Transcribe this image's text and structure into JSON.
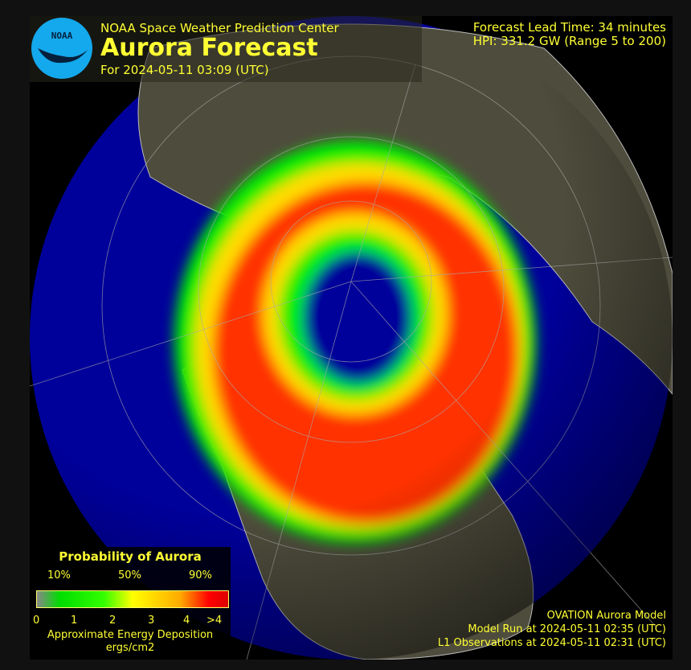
{
  "header": {
    "org": "NOAA Space Weather Prediction Center",
    "title": "Aurora Forecast",
    "for_date": "For 2024-05-11 03:09 (UTC)",
    "lead_time": "Forecast Lead Time:  34 minutes",
    "hpi": "HPI: 331.2 GW (Range 5 to 200)",
    "logo_text": "NOAA"
  },
  "legend": {
    "title": "Probability of Aurora",
    "percents": [
      "10%",
      "50%",
      "90%"
    ],
    "ticks": [
      "0",
      "1",
      "2",
      "3",
      "4",
      ">4"
    ],
    "energy_label": "Approximate Energy Deposition",
    "energy_unit": "ergs/cm2",
    "colors": [
      "#888888",
      "#00dd00",
      "#ffff00",
      "#ffaa00",
      "#ff0000"
    ]
  },
  "footer": {
    "model": "OVATION Aurora Model",
    "model_run": "Model Run at 2024-05-11 02:35 (UTC)",
    "l1": "L1 Observations at 2024-05-11 02:31 (UTC)"
  },
  "colors": {
    "text": "#ffff33",
    "ocean": "#00009a",
    "land": "#4a4a3a",
    "aurora_max": "#ff3300"
  }
}
